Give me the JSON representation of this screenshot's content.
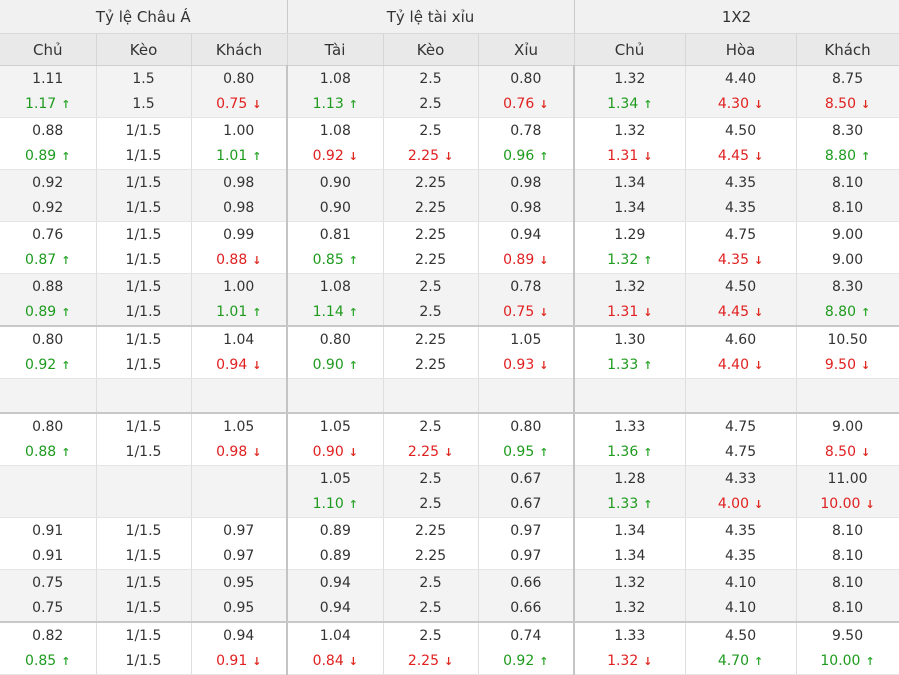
{
  "headers": {
    "groups": [
      "Tỷ lệ Châu Á",
      "Tỷ lệ tài xỉu",
      "1X2"
    ],
    "columns": [
      "Chủ",
      "Kèo",
      "Khách",
      "Tài",
      "Kèo",
      "Xỉu",
      "Chủ",
      "Hòa",
      "Khách"
    ]
  },
  "icons": {
    "up": "arrow-up-icon",
    "down": "arrow-down-icon"
  },
  "colors": {
    "up": "#1e9b1e",
    "down": "#e02020",
    "header_bg": "#e9e9e9",
    "alt_row_bg": "#f3f3f3"
  },
  "rows": [
    {
      "grey": true,
      "strong": false,
      "cells": [
        [
          {
            "v": "1.11"
          },
          {
            "v": "1.17",
            "d": "up"
          }
        ],
        [
          {
            "v": "1.5"
          },
          {
            "v": "1.5"
          }
        ],
        [
          {
            "v": "0.80"
          },
          {
            "v": "0.75",
            "d": "down"
          }
        ],
        [
          {
            "v": "1.08"
          },
          {
            "v": "1.13",
            "d": "up"
          }
        ],
        [
          {
            "v": "2.5"
          },
          {
            "v": "2.5"
          }
        ],
        [
          {
            "v": "0.80"
          },
          {
            "v": "0.76",
            "d": "down"
          }
        ],
        [
          {
            "v": "1.32"
          },
          {
            "v": "1.34",
            "d": "up"
          }
        ],
        [
          {
            "v": "4.40"
          },
          {
            "v": "4.30",
            "d": "down"
          }
        ],
        [
          {
            "v": "8.75"
          },
          {
            "v": "8.50",
            "d": "down"
          }
        ]
      ]
    },
    {
      "grey": false,
      "strong": false,
      "cells": [
        [
          {
            "v": "0.88"
          },
          {
            "v": "0.89",
            "d": "up"
          }
        ],
        [
          {
            "v": "1/1.5"
          },
          {
            "v": "1/1.5"
          }
        ],
        [
          {
            "v": "1.00"
          },
          {
            "v": "1.01",
            "d": "up"
          }
        ],
        [
          {
            "v": "1.08"
          },
          {
            "v": "0.92",
            "d": "down"
          }
        ],
        [
          {
            "v": "2.5"
          },
          {
            "v": "2.25",
            "d": "down"
          }
        ],
        [
          {
            "v": "0.78"
          },
          {
            "v": "0.96",
            "d": "up"
          }
        ],
        [
          {
            "v": "1.32"
          },
          {
            "v": "1.31",
            "d": "down"
          }
        ],
        [
          {
            "v": "4.50"
          },
          {
            "v": "4.45",
            "d": "down"
          }
        ],
        [
          {
            "v": "8.30"
          },
          {
            "v": "8.80",
            "d": "up"
          }
        ]
      ]
    },
    {
      "grey": true,
      "strong": false,
      "cells": [
        [
          {
            "v": "0.92"
          },
          {
            "v": "0.92"
          }
        ],
        [
          {
            "v": "1/1.5"
          },
          {
            "v": "1/1.5"
          }
        ],
        [
          {
            "v": "0.98"
          },
          {
            "v": "0.98"
          }
        ],
        [
          {
            "v": "0.90"
          },
          {
            "v": "0.90"
          }
        ],
        [
          {
            "v": "2.25"
          },
          {
            "v": "2.25"
          }
        ],
        [
          {
            "v": "0.98"
          },
          {
            "v": "0.98"
          }
        ],
        [
          {
            "v": "1.34"
          },
          {
            "v": "1.34"
          }
        ],
        [
          {
            "v": "4.35"
          },
          {
            "v": "4.35"
          }
        ],
        [
          {
            "v": "8.10"
          },
          {
            "v": "8.10"
          }
        ]
      ]
    },
    {
      "grey": false,
      "strong": false,
      "cells": [
        [
          {
            "v": "0.76"
          },
          {
            "v": "0.87",
            "d": "up"
          }
        ],
        [
          {
            "v": "1/1.5"
          },
          {
            "v": "1/1.5"
          }
        ],
        [
          {
            "v": "0.99"
          },
          {
            "v": "0.88",
            "d": "down"
          }
        ],
        [
          {
            "v": "0.81"
          },
          {
            "v": "0.85",
            "d": "up"
          }
        ],
        [
          {
            "v": "2.25"
          },
          {
            "v": "2.25"
          }
        ],
        [
          {
            "v": "0.94"
          },
          {
            "v": "0.89",
            "d": "down"
          }
        ],
        [
          {
            "v": "1.29"
          },
          {
            "v": "1.32",
            "d": "up"
          }
        ],
        [
          {
            "v": "4.75"
          },
          {
            "v": "4.35",
            "d": "down"
          }
        ],
        [
          {
            "v": "9.00"
          },
          {
            "v": "9.00"
          }
        ]
      ]
    },
    {
      "grey": true,
      "strong": true,
      "cells": [
        [
          {
            "v": "0.88"
          },
          {
            "v": "0.89",
            "d": "up"
          }
        ],
        [
          {
            "v": "1/1.5"
          },
          {
            "v": "1/1.5"
          }
        ],
        [
          {
            "v": "1.00"
          },
          {
            "v": "1.01",
            "d": "up"
          }
        ],
        [
          {
            "v": "1.08"
          },
          {
            "v": "1.14",
            "d": "up"
          }
        ],
        [
          {
            "v": "2.5"
          },
          {
            "v": "2.5"
          }
        ],
        [
          {
            "v": "0.78"
          },
          {
            "v": "0.75",
            "d": "down"
          }
        ],
        [
          {
            "v": "1.32"
          },
          {
            "v": "1.31",
            "d": "down"
          }
        ],
        [
          {
            "v": "4.50"
          },
          {
            "v": "4.45",
            "d": "down"
          }
        ],
        [
          {
            "v": "8.30"
          },
          {
            "v": "8.80",
            "d": "up"
          }
        ]
      ]
    },
    {
      "grey": false,
      "strong": false,
      "cells": [
        [
          {
            "v": "0.80"
          },
          {
            "v": "0.92",
            "d": "up"
          }
        ],
        [
          {
            "v": "1/1.5"
          },
          {
            "v": "1/1.5"
          }
        ],
        [
          {
            "v": "1.04"
          },
          {
            "v": "0.94",
            "d": "down"
          }
        ],
        [
          {
            "v": "0.80"
          },
          {
            "v": "0.90",
            "d": "up"
          }
        ],
        [
          {
            "v": "2.25"
          },
          {
            "v": "2.25"
          }
        ],
        [
          {
            "v": "1.05"
          },
          {
            "v": "0.93",
            "d": "down"
          }
        ],
        [
          {
            "v": "1.30"
          },
          {
            "v": "1.33",
            "d": "up"
          }
        ],
        [
          {
            "v": "4.60"
          },
          {
            "v": "4.40",
            "d": "down"
          }
        ],
        [
          {
            "v": "10.50"
          },
          {
            "v": "9.50",
            "d": "down"
          }
        ]
      ]
    },
    {
      "grey": true,
      "strong": true,
      "empty": true,
      "cells": [
        [],
        [],
        [],
        [],
        [],
        [],
        [],
        [],
        []
      ]
    },
    {
      "grey": false,
      "strong": false,
      "cells": [
        [
          {
            "v": "0.80"
          },
          {
            "v": "0.88",
            "d": "up"
          }
        ],
        [
          {
            "v": "1/1.5"
          },
          {
            "v": "1/1.5"
          }
        ],
        [
          {
            "v": "1.05"
          },
          {
            "v": "0.98",
            "d": "down"
          }
        ],
        [
          {
            "v": "1.05"
          },
          {
            "v": "0.90",
            "d": "down"
          }
        ],
        [
          {
            "v": "2.5"
          },
          {
            "v": "2.25",
            "d": "down"
          }
        ],
        [
          {
            "v": "0.80"
          },
          {
            "v": "0.95",
            "d": "up"
          }
        ],
        [
          {
            "v": "1.33"
          },
          {
            "v": "1.36",
            "d": "up"
          }
        ],
        [
          {
            "v": "4.75"
          },
          {
            "v": "4.75"
          }
        ],
        [
          {
            "v": "9.00"
          },
          {
            "v": "8.50",
            "d": "down"
          }
        ]
      ]
    },
    {
      "grey": true,
      "strong": false,
      "cells": [
        [],
        [],
        [],
        [
          {
            "v": "1.05"
          },
          {
            "v": "1.10",
            "d": "up"
          }
        ],
        [
          {
            "v": "2.5"
          },
          {
            "v": "2.5"
          }
        ],
        [
          {
            "v": "0.67"
          },
          {
            "v": "0.67"
          }
        ],
        [
          {
            "v": "1.28"
          },
          {
            "v": "1.33",
            "d": "up"
          }
        ],
        [
          {
            "v": "4.33"
          },
          {
            "v": "4.00",
            "d": "down"
          }
        ],
        [
          {
            "v": "11.00"
          },
          {
            "v": "10.00",
            "d": "down"
          }
        ]
      ]
    },
    {
      "grey": false,
      "strong": false,
      "cells": [
        [
          {
            "v": "0.91"
          },
          {
            "v": "0.91"
          }
        ],
        [
          {
            "v": "1/1.5"
          },
          {
            "v": "1/1.5"
          }
        ],
        [
          {
            "v": "0.97"
          },
          {
            "v": "0.97"
          }
        ],
        [
          {
            "v": "0.89"
          },
          {
            "v": "0.89"
          }
        ],
        [
          {
            "v": "2.25"
          },
          {
            "v": "2.25"
          }
        ],
        [
          {
            "v": "0.97"
          },
          {
            "v": "0.97"
          }
        ],
        [
          {
            "v": "1.34"
          },
          {
            "v": "1.34"
          }
        ],
        [
          {
            "v": "4.35"
          },
          {
            "v": "4.35"
          }
        ],
        [
          {
            "v": "8.10"
          },
          {
            "v": "8.10"
          }
        ]
      ]
    },
    {
      "grey": true,
      "strong": true,
      "cells": [
        [
          {
            "v": "0.75"
          },
          {
            "v": "0.75"
          }
        ],
        [
          {
            "v": "1/1.5"
          },
          {
            "v": "1/1.5"
          }
        ],
        [
          {
            "v": "0.95"
          },
          {
            "v": "0.95"
          }
        ],
        [
          {
            "v": "0.94"
          },
          {
            "v": "0.94"
          }
        ],
        [
          {
            "v": "2.5"
          },
          {
            "v": "2.5"
          }
        ],
        [
          {
            "v": "0.66"
          },
          {
            "v": "0.66"
          }
        ],
        [
          {
            "v": "1.32"
          },
          {
            "v": "1.32"
          }
        ],
        [
          {
            "v": "4.10"
          },
          {
            "v": "4.10"
          }
        ],
        [
          {
            "v": "8.10"
          },
          {
            "v": "8.10"
          }
        ]
      ]
    },
    {
      "grey": false,
      "strong": false,
      "cells": [
        [
          {
            "v": "0.82"
          },
          {
            "v": "0.85",
            "d": "up"
          }
        ],
        [
          {
            "v": "1/1.5"
          },
          {
            "v": "1/1.5"
          }
        ],
        [
          {
            "v": "0.94"
          },
          {
            "v": "0.91",
            "d": "down"
          }
        ],
        [
          {
            "v": "1.04"
          },
          {
            "v": "0.84",
            "d": "down"
          }
        ],
        [
          {
            "v": "2.5"
          },
          {
            "v": "2.25",
            "d": "down"
          }
        ],
        [
          {
            "v": "0.74"
          },
          {
            "v": "0.92",
            "d": "up"
          }
        ],
        [
          {
            "v": "1.33"
          },
          {
            "v": "1.32",
            "d": "down"
          }
        ],
        [
          {
            "v": "4.50"
          },
          {
            "v": "4.70",
            "d": "up"
          }
        ],
        [
          {
            "v": "9.50"
          },
          {
            "v": "10.00",
            "d": "up"
          }
        ]
      ]
    }
  ]
}
